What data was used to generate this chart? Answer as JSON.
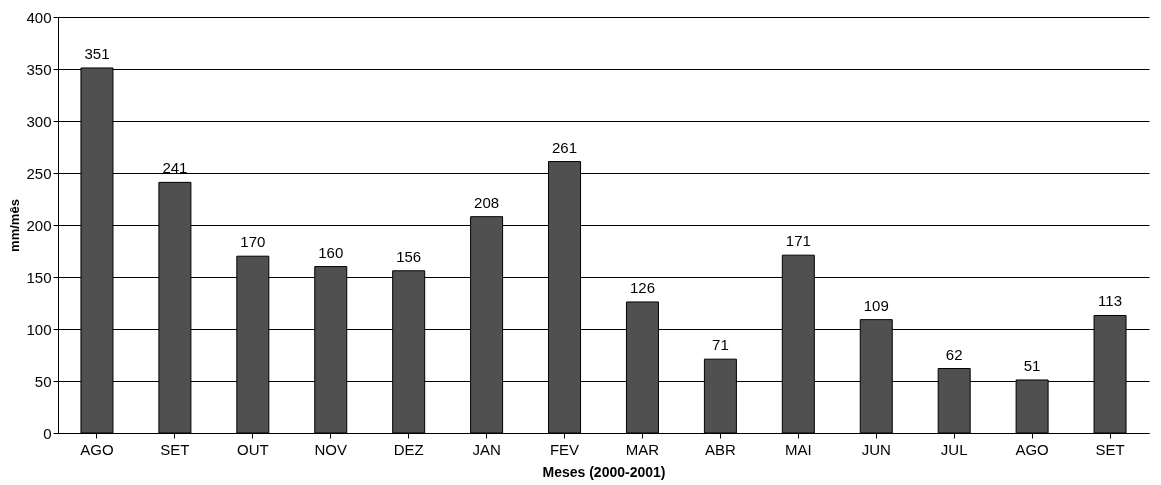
{
  "chart_data": {
    "type": "bar",
    "xlabel": "Meses (2000-2001)",
    "ylabel": "mm/mês",
    "categories": [
      "AGO",
      "SET",
      "OUT",
      "NOV",
      "DEZ",
      "JAN",
      "FEV",
      "MAR",
      "ABR",
      "MAI",
      "JUN",
      "JUL",
      "AGO",
      "SET"
    ],
    "values": [
      351,
      241,
      170,
      160,
      156,
      208,
      261,
      126,
      71,
      171,
      109,
      62,
      51,
      113
    ],
    "color": "#505050",
    "ylim": [
      0,
      400
    ],
    "yticks": [
      0,
      50,
      100,
      150,
      200,
      250,
      300,
      350,
      400
    ],
    "grid": "y",
    "data_labels": true
  }
}
